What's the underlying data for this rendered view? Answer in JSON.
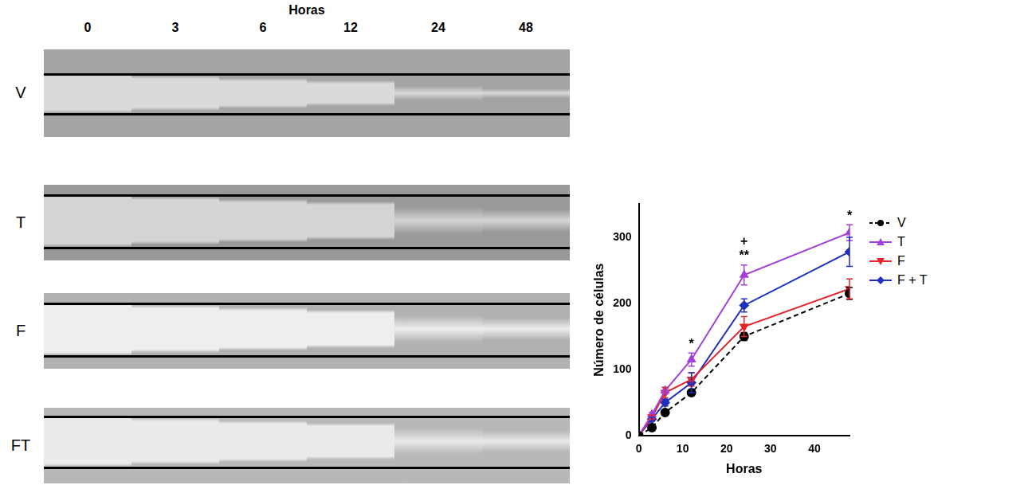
{
  "figure": {
    "title": "Horas",
    "columns": [
      "0",
      "3",
      "6",
      "12",
      "24",
      "48"
    ],
    "rows": [
      "V",
      "T",
      "F",
      "FT"
    ]
  },
  "chart_data": {
    "type": "line",
    "x_label": "Horas",
    "y_label": "Número de células",
    "x": [
      0,
      3,
      6,
      12,
      24,
      48
    ],
    "series": [
      {
        "name": "V",
        "color": "#000000",
        "marker": "circle",
        "line_style": "dashed",
        "values": [
          0,
          12,
          35,
          65,
          150,
          215
        ],
        "errors": [
          0,
          2,
          3,
          4,
          6,
          9
        ]
      },
      {
        "name": "T",
        "color": "#a33fdc",
        "marker": "triangle-up",
        "line_style": "solid",
        "values": [
          0,
          32,
          68,
          115,
          243,
          307
        ],
        "errors": [
          0,
          3,
          5,
          10,
          15,
          12
        ]
      },
      {
        "name": "F",
        "color": "#e3242b",
        "marker": "triangle-down",
        "line_style": "solid",
        "values": [
          0,
          28,
          65,
          85,
          165,
          222
        ],
        "errors": [
          0,
          3,
          8,
          10,
          15,
          15
        ]
      },
      {
        "name": "F + T",
        "color": "#1f2fbf",
        "marker": "diamond",
        "line_style": "solid",
        "values": [
          0,
          25,
          50,
          80,
          197,
          278
        ],
        "errors": [
          0,
          3,
          5,
          15,
          10,
          22
        ]
      }
    ],
    "annotations": [
      {
        "x": 12,
        "y": 128,
        "text": "*"
      },
      {
        "x": 24,
        "y": 262,
        "text": "**"
      },
      {
        "x": 24,
        "y": 284,
        "text": "+"
      },
      {
        "x": 48,
        "y": 322,
        "text": "*"
      }
    ],
    "xlim": [
      0,
      48
    ],
    "xticks": [
      0,
      10,
      20,
      30,
      40
    ],
    "ylim": [
      0,
      350
    ],
    "yticks": [
      0,
      100,
      200,
      300
    ],
    "grid": false,
    "legend": "right"
  }
}
